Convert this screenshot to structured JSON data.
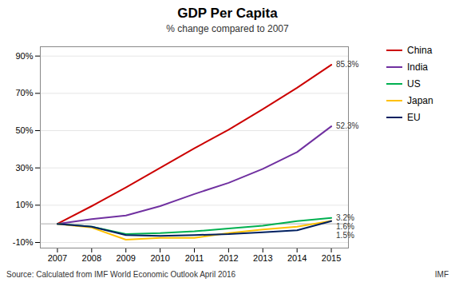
{
  "chart_data": {
    "type": "line",
    "title": "GDP Per Capita",
    "subtitle": "% change compared to 2007",
    "source": "Source: Calculated from IMF World Economic Outlook April 2016",
    "credit": "IMF",
    "x": [
      2007,
      2008,
      2009,
      2010,
      2011,
      2012,
      2013,
      2014,
      2015
    ],
    "series": [
      {
        "name": "China",
        "color": "#cc0000",
        "values": [
          0,
          9.5,
          19.5,
          30.0,
          40.5,
          50.5,
          61.5,
          73.0,
          85.3
        ]
      },
      {
        "name": "India",
        "color": "#7030a0",
        "values": [
          0,
          2.5,
          4.5,
          9.5,
          16.0,
          22.0,
          29.5,
          38.5,
          52.3
        ]
      },
      {
        "name": "US",
        "color": "#00b050",
        "values": [
          0,
          -1.5,
          -5.5,
          -5.0,
          -4.0,
          -2.5,
          -1.0,
          1.5,
          3.2
        ]
      },
      {
        "name": "Japan",
        "color": "#ffc000",
        "values": [
          0,
          -2.0,
          -8.5,
          -7.5,
          -7.5,
          -5.0,
          -3.0,
          -1.5,
          1.6
        ]
      },
      {
        "name": "EU",
        "color": "#002060",
        "values": [
          0,
          -1.5,
          -6.0,
          -6.5,
          -6.0,
          -5.5,
          -4.5,
          -3.5,
          1.5
        ]
      }
    ],
    "xlim": [
      2006.5,
      2015.5
    ],
    "xticks": [
      2007,
      2008,
      2009,
      2010,
      2011,
      2012,
      2013,
      2014,
      2015
    ],
    "ylim": [
      -13,
      95
    ],
    "yticks": [
      {
        "value": -10,
        "label": "-10%"
      },
      {
        "value": 10,
        "label": "10%"
      },
      {
        "value": 30,
        "label": "30%"
      },
      {
        "value": 50,
        "label": "50%"
      },
      {
        "value": 70,
        "label": "70%"
      },
      {
        "value": 90,
        "label": "90%"
      }
    ],
    "grid": true,
    "legend": "right",
    "annotations": [
      {
        "text": "85.3%",
        "x": 2015,
        "y": 85.3
      },
      {
        "text": "52.3%",
        "x": 2015,
        "y": 52.3
      },
      {
        "text": "3.2%",
        "x": 2015,
        "y": 3.2
      },
      {
        "text": "1.6%",
        "x": 2015,
        "y": 1.6
      },
      {
        "text": "1.5%",
        "x": 2015,
        "y": 1.5
      }
    ]
  }
}
